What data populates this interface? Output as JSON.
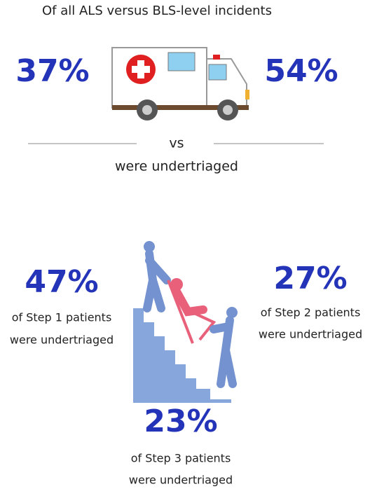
{
  "header": {
    "title": "Of all ALS versus BLS-level incidents"
  },
  "comparison": {
    "left": "37%",
    "right": "54%",
    "separator": "vs",
    "caption": "were undertriaged"
  },
  "steps": [
    {
      "value": "47%",
      "caption": [
        "of Step 1 patients",
        "were undertriaged"
      ]
    },
    {
      "value": "27%",
      "caption": [
        "of Step 2 patients",
        "were undertriaged"
      ]
    },
    {
      "value": "23%",
      "caption": [
        "of Step 3 patients",
        "were undertriaged"
      ]
    }
  ]
}
